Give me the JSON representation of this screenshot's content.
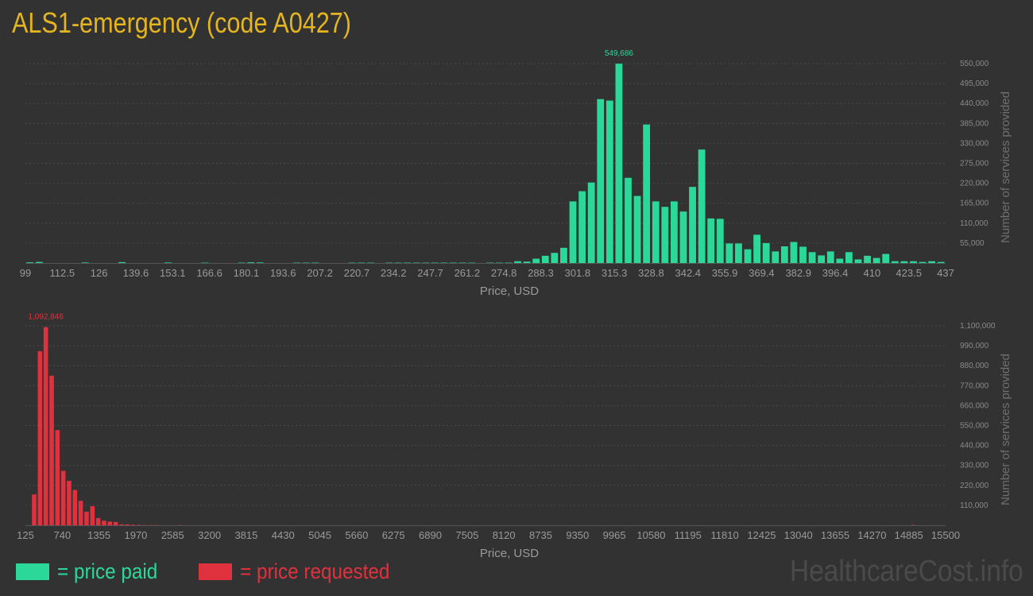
{
  "title": "ALS1-emergency (code A0427)",
  "legend": {
    "paid_label": "= price paid",
    "requested_label": "= price requested"
  },
  "watermark": "HealthcareCost.info",
  "colors": {
    "paid": "#2bd89a",
    "requested": "#e0313f",
    "title": "#e5b520",
    "background": "#323232"
  },
  "chart_data": [
    {
      "type": "bar",
      "series": [
        {
          "values": [
            2000,
            3000,
            0,
            0,
            0,
            0,
            1500,
            0,
            0,
            0,
            2500,
            0,
            0,
            0,
            0,
            1500,
            0,
            0,
            0,
            1000,
            0,
            0,
            0,
            1000,
            2000,
            1500,
            0,
            0,
            0,
            1000,
            1000,
            1000,
            0,
            0,
            0,
            1000,
            1000,
            1000,
            0,
            1000,
            1000,
            1000,
            1000,
            1000,
            1000,
            1000,
            1000,
            1000,
            1000,
            0,
            1000,
            1000,
            1000,
            5000,
            4000,
            12000,
            20000,
            28000,
            42000,
            170000,
            198000,
            222000,
            452000,
            448000,
            549686,
            235000,
            185000,
            382000,
            170000,
            155000,
            170000,
            142000,
            210000,
            313000,
            123000,
            122000,
            54000,
            54000,
            38000,
            78000,
            55000,
            32000,
            46000,
            58000,
            45000,
            30000,
            21000,
            32000,
            12000,
            30000,
            10000,
            20000,
            14000,
            25000,
            5000,
            5000,
            5000,
            3000,
            5000,
            3000
          ]
        }
      ],
      "x_tick_labels": [
        "99",
        "112.5",
        "126",
        "139.6",
        "153.1",
        "166.6",
        "180.1",
        "193.6",
        "207.2",
        "220.7",
        "234.2",
        "247.7",
        "261.2",
        "274.8",
        "288.3",
        "301.8",
        "315.3",
        "328.8",
        "342.4",
        "355.9",
        "369.4",
        "382.9",
        "396.4",
        "410",
        "423.5",
        "437"
      ],
      "y_ticks": [
        "55,000",
        "110,000",
        "165,000",
        "220,000",
        "275,000",
        "330,000",
        "385,000",
        "440,000",
        "495,000",
        "550,000"
      ],
      "ylim": [
        0,
        550000
      ],
      "peak_label": "549,686",
      "xlabel": "Price, USD",
      "ylabel": "Number of services provided",
      "grid": true
    },
    {
      "type": "bar",
      "series": [
        {
          "values": [
            0,
            170000,
            960000,
            1092846,
            825000,
            525000,
            300000,
            245000,
            195000,
            135000,
            75000,
            105000,
            40000,
            25000,
            20000,
            18000,
            5000,
            5000,
            3000,
            2000,
            1000,
            1000,
            1000,
            0,
            0,
            0,
            1000,
            0,
            0,
            0,
            0,
            0,
            0,
            0,
            0,
            0,
            0,
            0,
            0,
            0,
            0,
            0,
            0,
            0,
            0,
            0,
            0,
            0,
            0,
            0,
            0,
            0,
            0,
            0,
            0,
            0,
            0,
            0,
            0,
            0,
            0,
            0,
            0,
            0,
            0,
            0,
            0,
            0,
            0,
            0,
            0,
            0,
            0,
            0,
            0,
            0,
            0,
            0,
            0,
            0,
            0,
            0,
            0,
            0,
            0,
            0,
            0,
            0,
            0,
            0,
            0,
            0,
            0,
            0,
            0,
            0,
            0,
            0,
            0,
            0,
            0,
            0,
            0,
            0,
            0,
            0,
            0,
            0,
            0,
            0,
            0,
            0,
            0,
            0,
            0,
            0,
            0,
            0,
            0,
            0,
            0,
            0,
            0,
            0,
            0,
            0,
            0,
            0,
            0,
            0,
            0,
            0,
            0,
            0,
            0,
            0,
            0,
            0,
            0,
            0,
            0,
            0,
            0,
            0,
            0,
            0,
            0,
            0,
            0,
            0,
            0,
            0,
            2000,
            0,
            0,
            0,
            0,
            0
          ]
        }
      ],
      "x_tick_labels": [
        "125",
        "740",
        "1355",
        "1970",
        "2585",
        "3200",
        "3815",
        "4430",
        "5045",
        "5660",
        "6275",
        "6890",
        "7505",
        "8120",
        "8735",
        "9350",
        "9965",
        "10580",
        "11195",
        "11810",
        "12425",
        "13040",
        "13655",
        "14270",
        "14885",
        "15500"
      ],
      "y_ticks": [
        "110,000",
        "220,000",
        "330,000",
        "440,000",
        "550,000",
        "660,000",
        "770,000",
        "880,000",
        "990,000",
        "1,100,000"
      ],
      "ylim": [
        0,
        1100000
      ],
      "peak_label": "1,092,846",
      "xlabel": "Price, USD",
      "ylabel": "Number of services provided",
      "grid": true
    }
  ]
}
